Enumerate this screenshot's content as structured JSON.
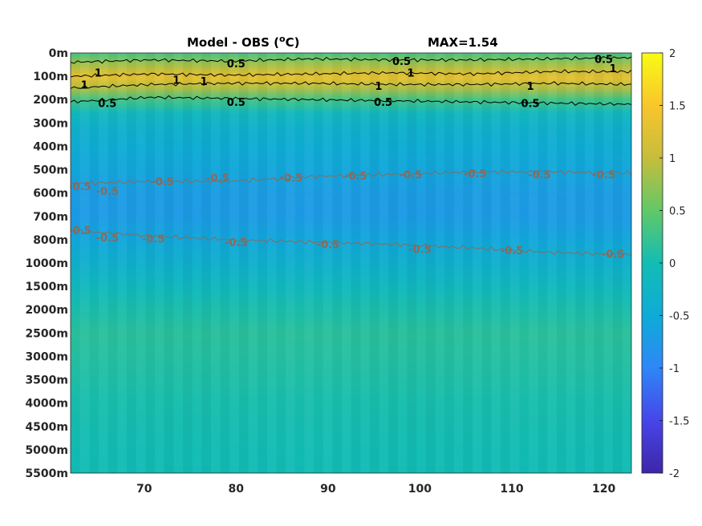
{
  "chart_data": {
    "type": "heatmap",
    "title": "Model - OBS (°C)",
    "title_parts": {
      "prefix": "Model - OBS (",
      "superscript": "o",
      "unit": "C)"
    },
    "annotation": "MAX=1.54",
    "xlabel": "",
    "ylabel": "",
    "xlim": [
      62,
      123
    ],
    "x_ticks": [
      70,
      80,
      90,
      100,
      110,
      120
    ],
    "x_tick_labels": [
      "70",
      "80",
      "90",
      "100",
      "110",
      "120"
    ],
    "y_tick_labels": [
      "0m",
      "100m",
      "200m",
      "300m",
      "400m",
      "500m",
      "600m",
      "700m",
      "800m",
      "1000m",
      "1500m",
      "2000m",
      "2500m",
      "3000m",
      "3500m",
      "4000m",
      "4500m",
      "5000m",
      "5500m"
    ],
    "colorbar": {
      "colormap": "parula",
      "range": [
        -2,
        2
      ],
      "ticks": [
        2,
        1.5,
        1,
        0.5,
        0,
        -0.5,
        -1,
        -1.5,
        -2
      ],
      "tick_labels": [
        "2",
        "1.5",
        "1",
        "0.5",
        "0",
        "-0.5",
        "-1",
        "-1.5",
        "-2"
      ]
    },
    "levels": [
      {
        "depth_index": 0.0,
        "value": 0.3
      },
      {
        "depth_index": 0.4,
        "value": 0.75
      },
      {
        "depth_index": 0.8,
        "value": 1.1
      },
      {
        "depth_index": 1.1,
        "value": 1.3
      },
      {
        "depth_index": 1.5,
        "value": 0.9
      },
      {
        "depth_index": 2.0,
        "value": 0.3
      },
      {
        "depth_index": 2.6,
        "value": -0.15
      },
      {
        "depth_index": 3.3,
        "value": -0.35
      },
      {
        "depth_index": 4.0,
        "value": -0.45
      },
      {
        "depth_index": 5.0,
        "value": -0.55
      },
      {
        "depth_index": 6.0,
        "value": -0.7
      },
      {
        "depth_index": 7.0,
        "value": -0.72
      },
      {
        "depth_index": 8.0,
        "value": -0.55
      },
      {
        "depth_index": 9.0,
        "value": -0.35
      },
      {
        "depth_index": 10.0,
        "value": -0.15
      },
      {
        "depth_index": 11.0,
        "value": 0.05
      },
      {
        "depth_index": 12.0,
        "value": 0.15
      },
      {
        "depth_index": 13.0,
        "value": 0.12
      },
      {
        "depth_index": 14.0,
        "value": 0.08
      },
      {
        "depth_index": 15.0,
        "value": 0.04
      },
      {
        "depth_index": 16.0,
        "value": 0.02
      },
      {
        "depth_index": 17.0,
        "value": 0.0
      },
      {
        "depth_index": 18.0,
        "value": -0.02
      }
    ],
    "contours": [
      {
        "level": 0.5,
        "color": "#000000",
        "depth_index": [
          0.4,
          0.3,
          0.35,
          0.25,
          0.3,
          0.3,
          0.25,
          0.2
        ],
        "labels": [
          {
            "x": 80,
            "depth_index": 0.45,
            "text": "0.5"
          },
          {
            "x": 98,
            "depth_index": 0.35,
            "text": "0.5"
          },
          {
            "x": 120,
            "depth_index": 0.25,
            "text": "0.5"
          }
        ]
      },
      {
        "level": 1,
        "color": "#000000",
        "depth_index": [
          1.0,
          0.9,
          0.95,
          0.9,
          0.85,
          0.9,
          0.8,
          0.8
        ],
        "labels": [
          {
            "x": 65,
            "depth_index": 0.85,
            "text": "1"
          },
          {
            "x": 99,
            "depth_index": 0.85,
            "text": "1"
          },
          {
            "x": 121,
            "depth_index": 0.65,
            "text": "1"
          }
        ]
      },
      {
        "level": 1,
        "color": "#000000",
        "depth_index": [
          1.5,
          1.35,
          1.3,
          1.3,
          1.35,
          1.35,
          1.3,
          1.35
        ],
        "labels": [
          {
            "x": 63.5,
            "depth_index": 1.35,
            "text": "1"
          },
          {
            "x": 73.5,
            "depth_index": 1.15,
            "text": "1"
          },
          {
            "x": 76.5,
            "depth_index": 1.2,
            "text": "1"
          },
          {
            "x": 95.5,
            "depth_index": 1.4,
            "text": "1"
          },
          {
            "x": 112,
            "depth_index": 1.4,
            "text": "1"
          }
        ]
      },
      {
        "level": 0.5,
        "color": "#000000",
        "depth_index": [
          2.1,
          1.9,
          1.95,
          2.0,
          2.05,
          2.1,
          2.15,
          2.2
        ],
        "labels": [
          {
            "x": 66,
            "depth_index": 2.15,
            "text": "0.5"
          },
          {
            "x": 80,
            "depth_index": 2.1,
            "text": "0.5"
          },
          {
            "x": 96,
            "depth_index": 2.1,
            "text": "0.5"
          },
          {
            "x": 112,
            "depth_index": 2.15,
            "text": "0.5"
          }
        ]
      },
      {
        "level": -0.5,
        "color": "#8a6a5a",
        "depth_index": [
          5.6,
          5.5,
          5.5,
          5.3,
          5.2,
          5.1,
          5.1,
          5.15
        ],
        "labels": [
          {
            "x": 63,
            "depth_index": 5.7,
            "text": "-0.5"
          },
          {
            "x": 66,
            "depth_index": 5.9,
            "text": "-0.5"
          },
          {
            "x": 72,
            "depth_index": 5.5,
            "text": "-0.5"
          },
          {
            "x": 78,
            "depth_index": 5.35,
            "text": "-0.5"
          },
          {
            "x": 86,
            "depth_index": 5.35,
            "text": "-0.5"
          },
          {
            "x": 93,
            "depth_index": 5.25,
            "text": "-0.5"
          },
          {
            "x": 99,
            "depth_index": 5.2,
            "text": "-0.5"
          },
          {
            "x": 106,
            "depth_index": 5.15,
            "text": "-0.5"
          },
          {
            "x": 113,
            "depth_index": 5.2,
            "text": "-0.5"
          },
          {
            "x": 120,
            "depth_index": 5.2,
            "text": "-0.5"
          }
        ]
      },
      {
        "level": -0.5,
        "color": "#8a6a5a",
        "depth_index": [
          7.6,
          7.85,
          8.0,
          8.1,
          8.2,
          8.35,
          8.55,
          8.65
        ],
        "labels": [
          {
            "x": 63,
            "depth_index": 7.6,
            "text": "-0.5"
          },
          {
            "x": 66,
            "depth_index": 7.9,
            "text": "-0.5"
          },
          {
            "x": 71,
            "depth_index": 7.95,
            "text": "-0.5"
          },
          {
            "x": 80,
            "depth_index": 8.1,
            "text": "-0.5"
          },
          {
            "x": 90,
            "depth_index": 8.2,
            "text": "-0.5"
          },
          {
            "x": 100,
            "depth_index": 8.4,
            "text": "-0.5"
          },
          {
            "x": 110,
            "depth_index": 8.45,
            "text": "-0.5"
          },
          {
            "x": 121,
            "depth_index": 8.6,
            "text": "-0.5"
          }
        ]
      }
    ]
  }
}
